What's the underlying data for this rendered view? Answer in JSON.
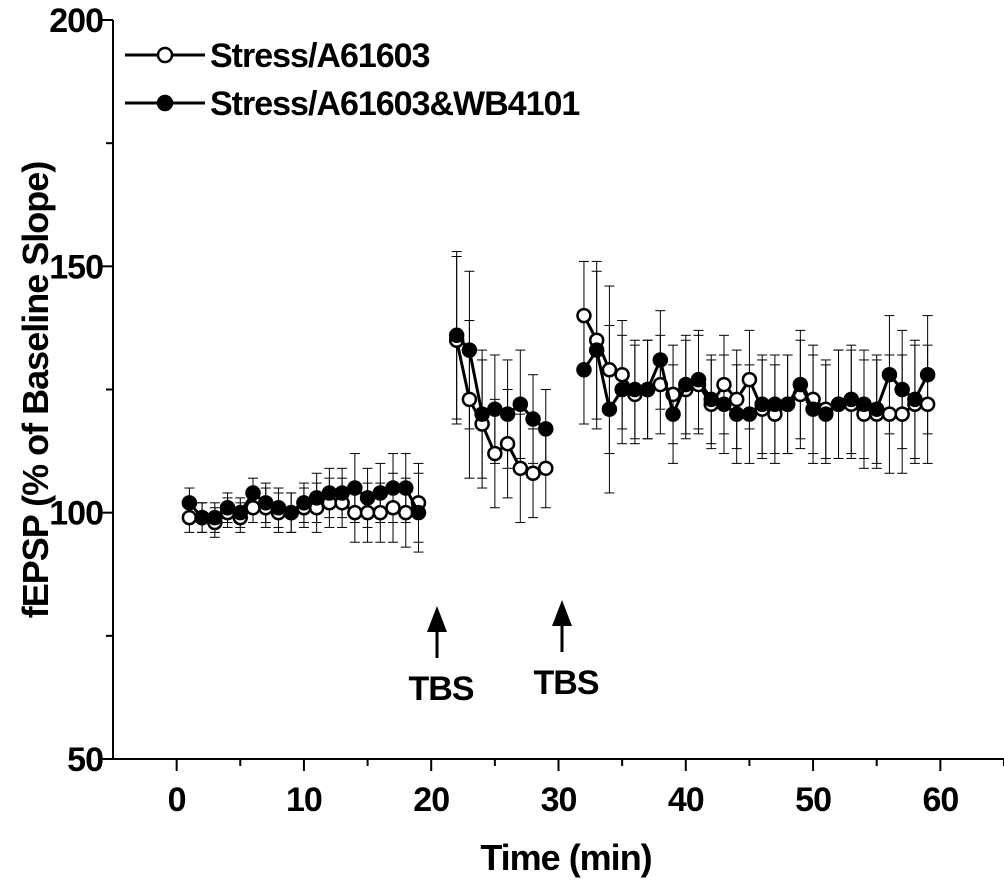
{
  "chart_data": {
    "type": "line",
    "title": "",
    "xlabel": "Time (min)",
    "ylabel": "fEPSP (% of Baseline Slope)",
    "xlim": [
      -5,
      65
    ],
    "ylim": [
      50,
      200
    ],
    "xticks": [
      0,
      10,
      20,
      30,
      40,
      50,
      60
    ],
    "yticks": [
      50,
      100,
      150,
      200
    ],
    "legend_position": "top-left",
    "annotations": [
      {
        "label": "TBS",
        "x": 20
      },
      {
        "label": "TBS",
        "x": 30
      }
    ],
    "series": [
      {
        "name": "Stress/A61603",
        "marker": "open-circle",
        "x": [
          1,
          2,
          3,
          4,
          5,
          6,
          7,
          8,
          9,
          10,
          11,
          12,
          13,
          14,
          15,
          16,
          17,
          18,
          19,
          22,
          23,
          24,
          25,
          26,
          27,
          28,
          29,
          32,
          33,
          34,
          35,
          36,
          37,
          38,
          39,
          40,
          41,
          42,
          43,
          44,
          45,
          46,
          47,
          48,
          49,
          50,
          51,
          52,
          53,
          54,
          55,
          56,
          57,
          58,
          59
        ],
        "y": [
          99,
          99,
          98,
          100,
          99,
          101,
          101,
          100,
          100,
          101,
          101,
          102,
          102,
          100,
          100,
          100,
          101,
          100,
          102,
          135,
          123,
          118,
          112,
          114,
          109,
          108,
          109,
          140,
          135,
          129,
          128,
          124,
          125,
          126,
          124,
          125,
          126,
          122,
          126,
          123,
          127,
          121,
          120,
          122,
          124,
          123,
          121,
          122,
          122,
          120,
          120,
          120,
          120,
          122,
          122
        ],
        "err": [
          3,
          3,
          3,
          3,
          3,
          3,
          4,
          4,
          4,
          4,
          5,
          5,
          5,
          6,
          6,
          6,
          7,
          7,
          8,
          17,
          16,
          13,
          11,
          11,
          11,
          9,
          8,
          11,
          16,
          17,
          11,
          10,
          10,
          10,
          10,
          10,
          10,
          9,
          10,
          10,
          10,
          10,
          10,
          10,
          11,
          11,
          10,
          11,
          11,
          11,
          11,
          12,
          12,
          12,
          12
        ]
      },
      {
        "name": "Stress/A61603&WB4101",
        "marker": "filled-circle",
        "x": [
          1,
          2,
          3,
          4,
          5,
          6,
          7,
          8,
          9,
          10,
          11,
          12,
          13,
          14,
          15,
          16,
          17,
          18,
          19,
          22,
          23,
          24,
          25,
          26,
          27,
          28,
          29,
          32,
          33,
          34,
          35,
          36,
          37,
          38,
          39,
          40,
          41,
          42,
          43,
          44,
          45,
          46,
          47,
          48,
          49,
          50,
          51,
          52,
          53,
          54,
          55,
          56,
          57,
          58,
          59
        ],
        "y": [
          102,
          99,
          99,
          101,
          100,
          104,
          102,
          101,
          100,
          102,
          103,
          104,
          104,
          105,
          103,
          104,
          105,
          105,
          100,
          136,
          133,
          120,
          121,
          120,
          122,
          119,
          117,
          129,
          133,
          121,
          125,
          125,
          125,
          131,
          120,
          126,
          127,
          123,
          122,
          120,
          120,
          122,
          122,
          122,
          126,
          121,
          120,
          122,
          123,
          122,
          121,
          128,
          125,
          123,
          128
        ],
        "err": [
          3,
          3,
          3,
          3,
          3,
          3,
          4,
          4,
          4,
          4,
          5,
          5,
          5,
          7,
          6,
          6,
          7,
          7,
          8,
          17,
          16,
          13,
          11,
          11,
          11,
          9,
          8,
          11,
          16,
          17,
          11,
          10,
          10,
          10,
          10,
          10,
          10,
          9,
          10,
          10,
          10,
          10,
          10,
          10,
          11,
          11,
          10,
          11,
          11,
          11,
          11,
          12,
          12,
          12,
          12
        ]
      }
    ]
  }
}
